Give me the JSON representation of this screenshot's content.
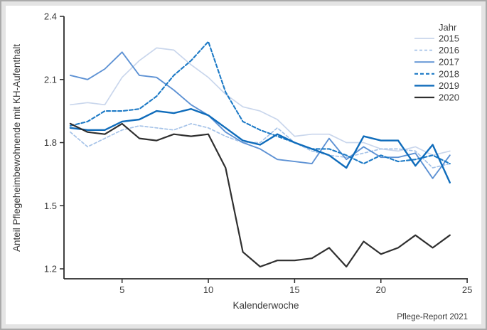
{
  "figure": {
    "caption": "Pflege-Report 2021"
  },
  "chart_data": {
    "type": "line",
    "title": "",
    "xlabel": "Kalenderwoche",
    "ylabel": "Anteil Pflegeheimbewohnende mit KH-Aufenthalt",
    "legend_title": "Jahr",
    "legend_position": "top-right",
    "grid": false,
    "x": [
      2,
      3,
      4,
      5,
      6,
      7,
      8,
      9,
      10,
      11,
      12,
      13,
      14,
      15,
      16,
      17,
      18,
      19,
      20,
      21,
      22,
      23,
      24
    ],
    "xlim": [
      1.6,
      25.2
    ],
    "ylim": [
      1.15,
      2.4
    ],
    "xticks": [
      {
        "value": 5,
        "label": "5"
      },
      {
        "value": 10,
        "label": "10"
      },
      {
        "value": 15,
        "label": "15"
      },
      {
        "value": 20,
        "label": "20"
      },
      {
        "value": 25,
        "label": "25"
      }
    ],
    "yticks": [
      {
        "value": 1.2,
        "label": "1.2"
      },
      {
        "value": 1.5,
        "label": "1.5"
      },
      {
        "value": 1.8,
        "label": "1.8"
      },
      {
        "value": 2.1,
        "label": "2.1"
      },
      {
        "value": 2.4,
        "label": "2.4"
      }
    ],
    "series": [
      {
        "name": "2015",
        "color": "#c9d6ec",
        "dash": "",
        "width": 1.7,
        "values": [
          1.98,
          1.99,
          1.98,
          2.11,
          2.19,
          2.25,
          2.24,
          2.17,
          2.11,
          2.03,
          1.97,
          1.95,
          1.91,
          1.83,
          1.84,
          1.84,
          1.8,
          1.8,
          1.77,
          1.76,
          1.78,
          1.74,
          1.76
        ]
      },
      {
        "name": "2016",
        "color": "#a6c3e8",
        "dash": "4 3",
        "width": 1.7,
        "values": [
          1.85,
          1.78,
          1.82,
          1.86,
          1.88,
          1.87,
          1.86,
          1.89,
          1.87,
          1.83,
          1.8,
          1.8,
          1.87,
          1.8,
          1.76,
          1.74,
          1.73,
          1.75,
          1.77,
          1.77,
          1.76,
          1.68,
          1.7
        ]
      },
      {
        "name": "2017",
        "color": "#5e92d4",
        "dash": "",
        "width": 1.9,
        "values": [
          2.12,
          2.1,
          2.15,
          2.23,
          2.12,
          2.11,
          2.05,
          1.98,
          1.93,
          1.85,
          1.8,
          1.77,
          1.72,
          1.71,
          1.7,
          1.82,
          1.72,
          1.78,
          1.73,
          1.73,
          1.75,
          1.63,
          1.74
        ]
      },
      {
        "name": "2018",
        "color": "#1d7ac6",
        "dash": "5 3",
        "width": 2.1,
        "values": [
          1.88,
          1.9,
          1.95,
          1.95,
          1.96,
          2.02,
          2.12,
          2.19,
          2.28,
          2.04,
          1.9,
          1.86,
          1.83,
          1.8,
          1.77,
          1.77,
          1.74,
          1.7,
          1.74,
          1.71,
          1.72,
          1.74,
          1.7
        ]
      },
      {
        "name": "2019",
        "color": "#0f6cbb",
        "dash": "",
        "width": 2.4,
        "values": [
          1.87,
          1.86,
          1.86,
          1.9,
          1.91,
          1.95,
          1.94,
          1.96,
          1.93,
          1.87,
          1.81,
          1.79,
          1.84,
          1.8,
          1.77,
          1.74,
          1.68,
          1.83,
          1.81,
          1.81,
          1.69,
          1.79,
          1.61
        ]
      },
      {
        "name": "2020",
        "color": "#2f2f2f",
        "dash": "",
        "width": 2.2,
        "values": [
          1.89,
          1.85,
          1.84,
          1.89,
          1.82,
          1.81,
          1.84,
          1.83,
          1.84,
          1.68,
          1.28,
          1.21,
          1.24,
          1.24,
          1.25,
          1.3,
          1.21,
          1.33,
          1.27,
          1.3,
          1.36,
          1.3,
          1.36
        ]
      }
    ],
    "axis_color": "#2b2b2b",
    "text_color": "#3a3a3a"
  }
}
